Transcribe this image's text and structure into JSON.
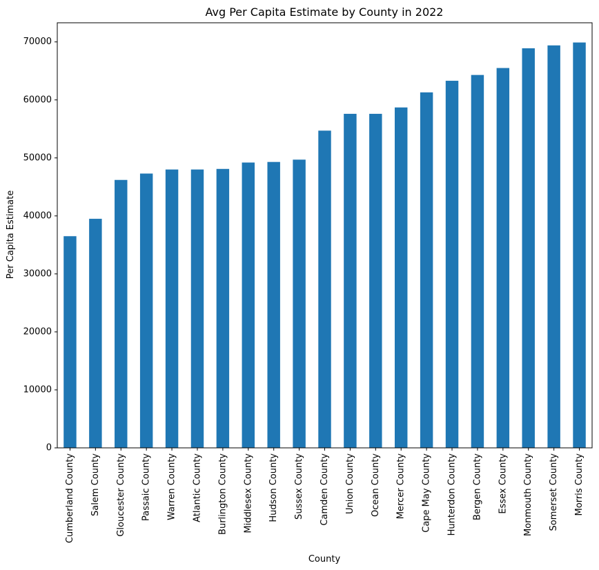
{
  "chart_data": {
    "type": "bar",
    "title": "Avg Per Capita Estimate by County in 2022",
    "xlabel": "County",
    "ylabel": "Per Capita Estimate",
    "ylim": [
      0,
      73300
    ],
    "yticks": [
      0,
      10000,
      20000,
      30000,
      40000,
      50000,
      60000,
      70000
    ],
    "ytick_labels": [
      "0",
      "10000",
      "20000",
      "30000",
      "40000",
      "50000",
      "60000",
      "70000"
    ],
    "grid": false,
    "legend": "none",
    "bar_color": "#1f77b4",
    "categories": [
      "Cumberland County",
      "Salem County",
      "Gloucester County",
      "Passaic County",
      "Warren County",
      "Atlantic County",
      "Burlington County",
      "Middlesex County",
      "Hudson County",
      "Sussex County",
      "Camden County",
      "Union County",
      "Ocean County",
      "Mercer County",
      "Cape May County",
      "Hunterdon County",
      "Bergen County",
      "Essex County",
      "Monmouth County",
      "Somerset County",
      "Morris County"
    ],
    "values": [
      36500,
      39500,
      46200,
      47300,
      48000,
      48000,
      48100,
      49200,
      49300,
      49700,
      54700,
      57600,
      57600,
      58700,
      61300,
      63300,
      64300,
      65500,
      68900,
      69400,
      69900
    ]
  }
}
